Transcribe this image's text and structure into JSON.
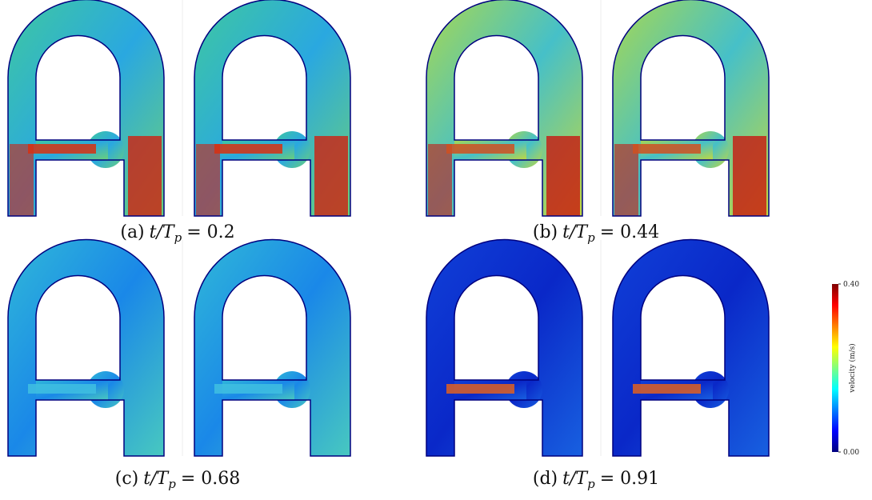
{
  "panels": [
    {
      "label": "(a)",
      "math": "t/T",
      "sub": "p",
      "rhs": "= 0.2"
    },
    {
      "label": "(b)",
      "math": "t/T",
      "sub": "p",
      "rhs": "= 0.44"
    },
    {
      "label": "(c)",
      "math": "t/T",
      "sub": "p",
      "rhs": "= 0.68"
    },
    {
      "label": "(d)",
      "math": "t/T",
      "sub": "p",
      "rhs": "= 0.91"
    }
  ],
  "colorbar": {
    "title": "velocity (m/s)",
    "ticks": [
      {
        "value": 0,
        "label": "0.00"
      },
      {
        "value": 0.4,
        "label": "0.40"
      }
    ],
    "lim": [
      0,
      0.4
    ]
  }
}
